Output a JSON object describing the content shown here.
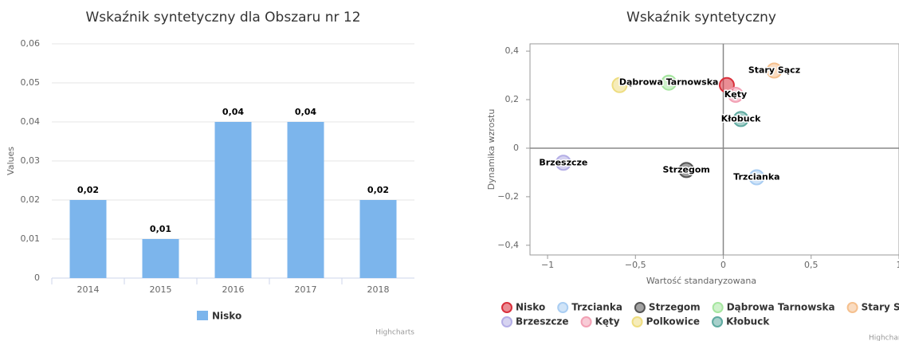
{
  "chart_data": [
    {
      "type": "bar",
      "title": "Wskaźnik syntetyczny dla Obszaru nr 12",
      "ylabel": "Values",
      "categories": [
        "2014",
        "2015",
        "2016",
        "2017",
        "2018"
      ],
      "series": [
        {
          "name": "Nisko",
          "color": "#7cb5ec",
          "values": [
            0.02,
            0.01,
            0.04,
            0.04,
            0.02
          ],
          "value_labels": [
            "0,02",
            "0,01",
            "0,04",
            "0,04",
            "0,02"
          ]
        }
      ],
      "ylim": [
        0,
        0.06
      ],
      "yticks": [
        0,
        {
          "value": 0.01,
          "label": "0,01"
        },
        {
          "value": 0.02,
          "label": "0,02"
        },
        {
          "value": 0.03,
          "label": "0,03"
        },
        {
          "value": 0.04,
          "label": "0,04"
        },
        {
          "value": 0.05,
          "label": "0,05"
        },
        {
          "value": 0.06,
          "label": "0,06"
        }
      ],
      "grid": true,
      "legend": "bottom",
      "credits": "Highcharts"
    },
    {
      "type": "scatter",
      "title": "Wskaźnik syntetyczny",
      "xlabel": "Wartość standaryzowana",
      "ylabel": "Dynamika wzrostu",
      "xlim": [
        -1.1,
        1.0
      ],
      "ylim": [
        -0.44,
        0.43
      ],
      "xticks": [
        {
          "value": -1,
          "label": "−1"
        },
        {
          "value": -0.5,
          "label": "−0,5"
        },
        0,
        {
          "value": 0.5,
          "label": "0,5"
        },
        1
      ],
      "yticks": [
        {
          "value": -0.4,
          "label": "−0,4"
        },
        {
          "value": -0.2,
          "label": "−0,2"
        },
        0,
        {
          "value": 0.2,
          "label": "0,2"
        },
        {
          "value": 0.4,
          "label": "0,4"
        }
      ],
      "series": [
        {
          "name": "Nisko",
          "color": "#d9303c",
          "x": [
            0.02
          ],
          "values": [
            0.26
          ],
          "show_label": false
        },
        {
          "name": "Trzcianka",
          "color": "#a9cdf2",
          "x": [
            0.19
          ],
          "values": [
            -0.12
          ],
          "show_label": true
        },
        {
          "name": "Strzegom",
          "color": "#555555",
          "x": [
            -0.21
          ],
          "values": [
            -0.09
          ],
          "show_label": true
        },
        {
          "name": "Dąbrowa Tarnowska",
          "color": "#a6e6a0",
          "x": [
            -0.31
          ],
          "values": [
            0.27
          ],
          "show_label": true
        },
        {
          "name": "Stary Sącz",
          "color": "#f5c08e",
          "x": [
            0.29
          ],
          "values": [
            0.32
          ],
          "show_label": true
        },
        {
          "name": "Brzeszcze",
          "color": "#b4aee6",
          "x": [
            -0.91
          ],
          "values": [
            -0.06
          ],
          "show_label": true
        },
        {
          "name": "Kęty",
          "color": "#f2a0b4",
          "x": [
            0.07
          ],
          "values": [
            0.22
          ],
          "show_label": true
        },
        {
          "name": "Polkowice",
          "color": "#eedd80",
          "x": [
            -0.59
          ],
          "values": [
            0.26
          ],
          "show_label": false
        },
        {
          "name": "Kłobuck",
          "color": "#5faaa0",
          "x": [
            0.1
          ],
          "values": [
            0.12
          ],
          "show_label": true
        }
      ],
      "legend": "bottom",
      "credits": "Highcharts"
    }
  ]
}
